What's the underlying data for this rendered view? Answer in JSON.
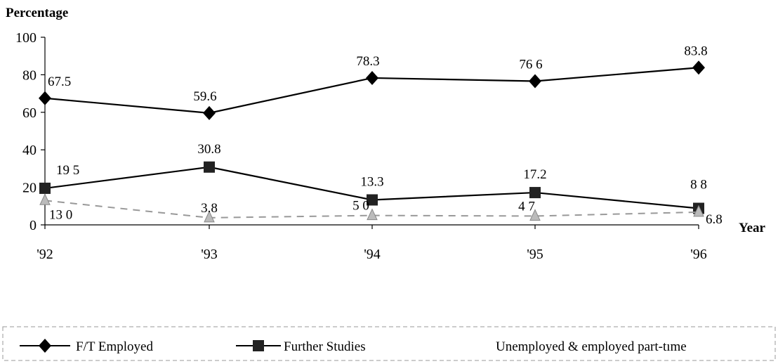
{
  "chart_data": {
    "type": "line",
    "ylabel": "Percentage",
    "xlabel": "Year",
    "categories": [
      "'92",
      "'93",
      "'94",
      "'95",
      "'96"
    ],
    "y_ticks": [
      "0",
      "20",
      "40",
      "60",
      "80",
      "100"
    ],
    "ylim": [
      0,
      100
    ],
    "grid": false,
    "legend_position": "bottom",
    "series": [
      {
        "name": "F/T Employed",
        "values": [
          67.5,
          59.6,
          78.3,
          76.6,
          83.8
        ],
        "data_labels": [
          "67.5",
          "59.6",
          "78.3",
          "76 6",
          "83.8"
        ],
        "marker": "diamond",
        "line_style": "solid",
        "color": "#000000"
      },
      {
        "name": "Further Studies",
        "values": [
          19.5,
          30.8,
          13.3,
          17.2,
          8.8
        ],
        "data_labels": [
          "19 5",
          "30.8",
          "13.3",
          "17.2",
          "8 8"
        ],
        "marker": "square",
        "line_style": "solid",
        "color": "#000000"
      },
      {
        "name": "Unemployed & employed part-tıme",
        "values": [
          13.0,
          3.8,
          5.0,
          4.7,
          6.8
        ],
        "data_labels": [
          "13 0",
          "3.8",
          "5 0",
          "4 7",
          "6.8"
        ],
        "marker": "triangle",
        "line_style": "dashed",
        "color": "#888888"
      }
    ]
  }
}
